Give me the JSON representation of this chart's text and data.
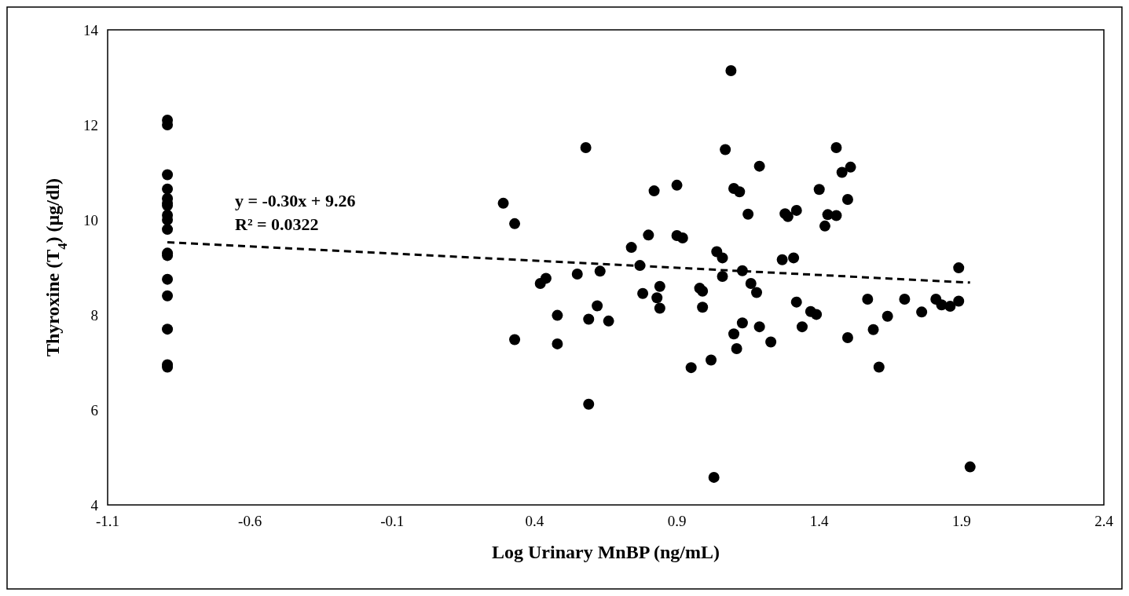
{
  "chart_data": {
    "type": "scatter",
    "xlabel": "Log Urinary MnBP (ng/mL)",
    "ylabel": "Thyroxine (T$_{4}$) (µg/dl)",
    "xlim": [
      -1.1,
      2.4
    ],
    "xticks": [
      -1.1,
      -0.6,
      -0.1,
      0.4,
      0.9,
      1.4,
      1.9,
      2.4
    ],
    "ylim": [
      4,
      14
    ],
    "yticks": [
      4,
      6,
      8,
      10,
      12,
      14
    ],
    "grid": false,
    "marker": "circle",
    "annotations": [
      "y = -0.30x + 9.26",
      "R² = 0.0322"
    ],
    "series": [
      {
        "color": "#000000",
        "x": [
          -0.89,
          -0.89,
          -0.89,
          -0.89,
          -0.89,
          -0.89,
          -0.89,
          -0.89,
          -0.89,
          -0.89,
          -0.89,
          -0.89,
          -0.89,
          -0.89,
          -0.89,
          -0.89,
          -0.89,
          1.09,
          0.58,
          1.07,
          1.19,
          0.29,
          0.9,
          0.82,
          1.1,
          1.12,
          0.33,
          1.15,
          1.28,
          1.29,
          1.32,
          0.8,
          0.9,
          0.92,
          0.74,
          1.04,
          1.06,
          1.27,
          1.31,
          0.77,
          1.13,
          0.63,
          0.55,
          0.44,
          0.42,
          1.06,
          1.16,
          1.18,
          0.84,
          0.78,
          0.83,
          0.84,
          0.98,
          0.99,
          0.99,
          0.62,
          0.48,
          0.59,
          0.66,
          1.32,
          1.13,
          1.1,
          1.11,
          1.19,
          1.23,
          1.34,
          0.33,
          0.48,
          0.95,
          1.02,
          0.59,
          1.03,
          1.46,
          1.48,
          1.51,
          1.4,
          1.5,
          1.43,
          1.46,
          1.42,
          1.89,
          1.37,
          1.39,
          1.57,
          1.7,
          1.81,
          1.83,
          1.86,
          1.89,
          1.76,
          1.64,
          1.59,
          1.5,
          1.61,
          1.93
        ],
        "values": [
          12.1,
          12.0,
          10.95,
          10.65,
          10.45,
          10.35,
          10.3,
          10.1,
          10.0,
          9.8,
          9.3,
          9.25,
          8.75,
          8.4,
          7.7,
          6.95,
          6.9,
          13.14,
          11.52,
          11.48,
          11.13,
          10.35,
          10.73,
          10.61,
          10.66,
          10.59,
          9.92,
          10.12,
          10.13,
          10.07,
          10.2,
          9.68,
          9.67,
          9.62,
          9.42,
          9.33,
          9.2,
          9.16,
          9.2,
          9.04,
          8.93,
          8.92,
          8.86,
          8.77,
          8.66,
          8.81,
          8.66,
          8.47,
          8.6,
          8.45,
          8.36,
          8.14,
          8.56,
          8.5,
          8.16,
          8.19,
          7.99,
          7.91,
          7.87,
          8.27,
          7.83,
          7.6,
          7.29,
          7.75,
          7.43,
          7.75,
          7.48,
          7.39,
          6.89,
          7.05,
          6.12,
          4.58,
          11.52,
          11.0,
          11.11,
          10.64,
          10.43,
          10.11,
          10.09,
          9.87,
          8.99,
          8.07,
          8.01,
          8.33,
          8.33,
          8.33,
          8.21,
          8.18,
          8.29,
          8.06,
          7.97,
          7.69,
          7.52,
          6.9,
          4.8
        ]
      },
      {
        "type": "line",
        "color": "#000000",
        "line_style": "dashed",
        "marker": "none",
        "x": [
          -0.89,
          1.93
        ],
        "values": [
          9.53,
          8.68
        ]
      }
    ]
  }
}
